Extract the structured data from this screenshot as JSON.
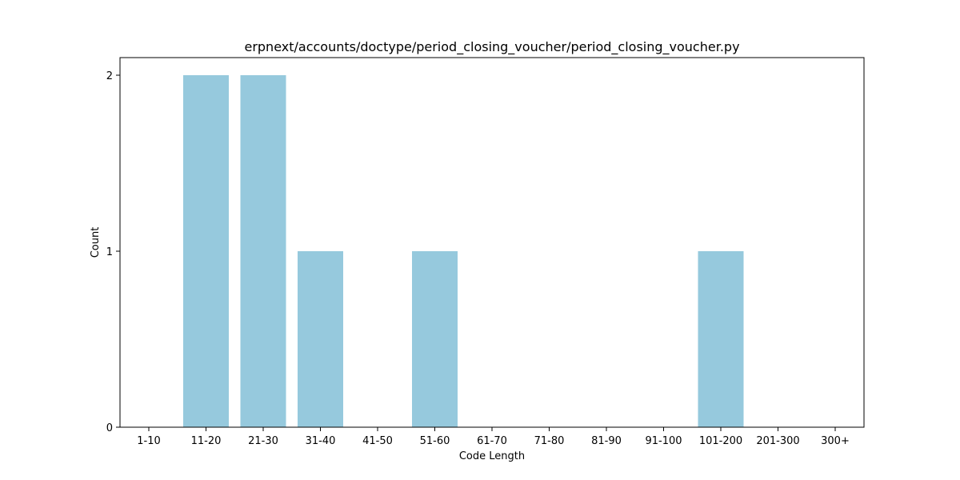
{
  "chart_data": {
    "type": "bar",
    "title": "erpnext/accounts/doctype/period_closing_voucher/period_closing_voucher.py",
    "xlabel": "Code Length",
    "ylabel": "Count",
    "categories": [
      "1-10",
      "11-20",
      "21-30",
      "31-40",
      "41-50",
      "51-60",
      "61-70",
      "71-80",
      "81-90",
      "91-100",
      "101-200",
      "201-300",
      "300+"
    ],
    "values": [
      0,
      2,
      2,
      1,
      0,
      1,
      0,
      0,
      0,
      0,
      1,
      0,
      0
    ],
    "yticks": [
      0,
      1,
      2
    ],
    "ylim": [
      0,
      2.1
    ],
    "grid": false,
    "legend": "none",
    "bar_color": "#96c9dd"
  }
}
